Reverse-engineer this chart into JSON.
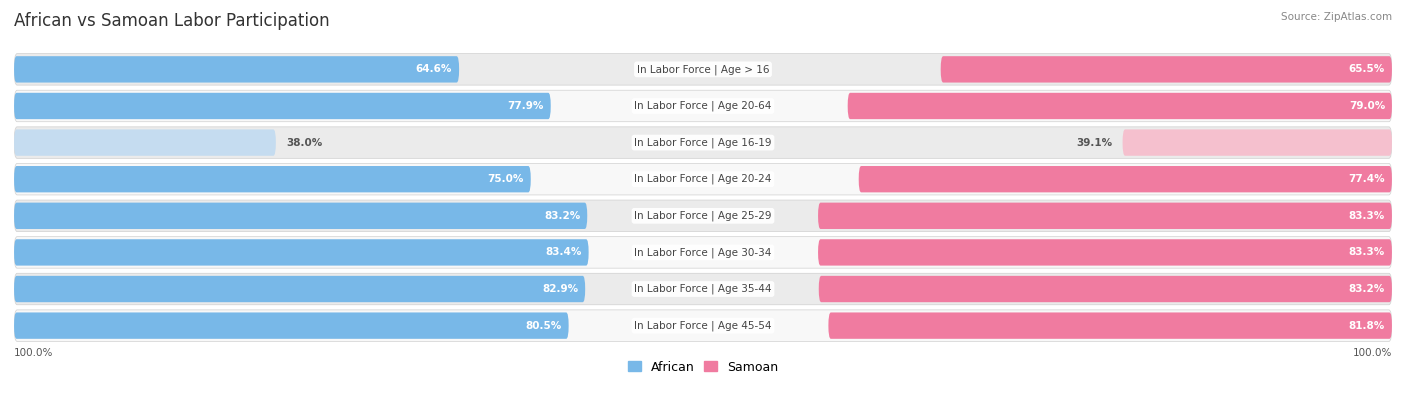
{
  "title": "African vs Samoan Labor Participation",
  "source": "Source: ZipAtlas.com",
  "categories": [
    "In Labor Force | Age > 16",
    "In Labor Force | Age 20-64",
    "In Labor Force | Age 16-19",
    "In Labor Force | Age 20-24",
    "In Labor Force | Age 25-29",
    "In Labor Force | Age 30-34",
    "In Labor Force | Age 35-44",
    "In Labor Force | Age 45-54"
  ],
  "african_values": [
    64.6,
    77.9,
    38.0,
    75.0,
    83.2,
    83.4,
    82.9,
    80.5
  ],
  "samoan_values": [
    65.5,
    79.0,
    39.1,
    77.4,
    83.3,
    83.3,
    83.2,
    81.8
  ],
  "african_color": "#78B8E8",
  "samoan_color": "#F07BA0",
  "african_color_light": "#C5DCF0",
  "samoan_color_light": "#F5C0CE",
  "bg_color": "#ffffff",
  "row_bg_odd": "#ebebeb",
  "row_bg_even": "#f8f8f8",
  "title_fontsize": 12,
  "label_fontsize": 7.5,
  "value_fontsize": 7.5,
  "legend_fontsize": 9,
  "axis_label": "100.0%",
  "max_val": 100.0
}
